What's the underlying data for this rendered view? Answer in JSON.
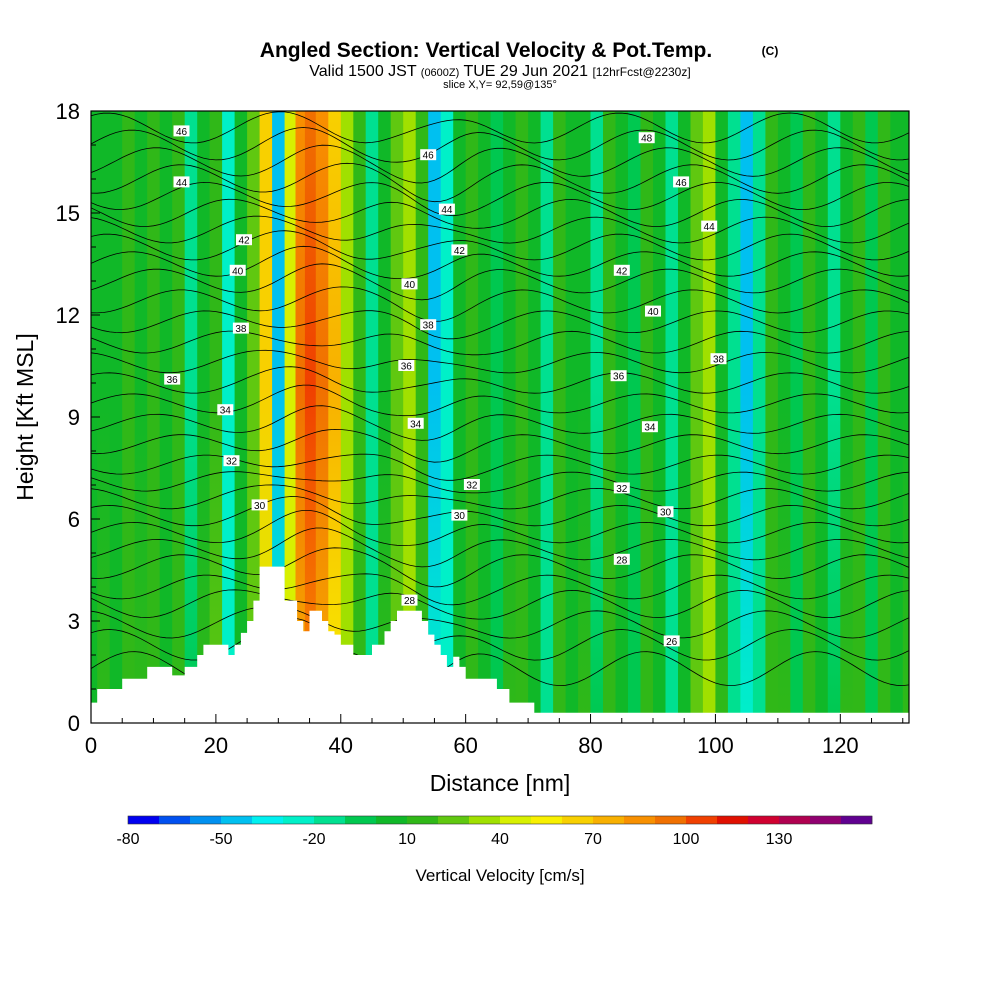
{
  "chart_data": {
    "type": "heatmap",
    "title": "Angled Section: Vertical Velocity & Pot.Temp.",
    "title_units": "(C)",
    "subtitle_parts": [
      "Valid 1500 JST",
      "(0600Z)",
      "TUE 29 Jun 2021",
      "[12hrFcst@2230z]"
    ],
    "slice_label": "slice X,Y= 92,59@135°",
    "xlabel": "Distance [nm]",
    "ylabel": "Height [Kft MSL]",
    "xlim": [
      0,
      131
    ],
    "ylim": [
      0,
      18
    ],
    "x_ticks": [
      0,
      20,
      40,
      60,
      80,
      100,
      120
    ],
    "y_ticks": [
      0,
      3,
      6,
      9,
      12,
      15,
      18
    ],
    "colorbar": {
      "label": "Vertical Velocity [cm/s]",
      "tick_labels": [
        "-80",
        "-50",
        "-20",
        "10",
        "40",
        "70",
        "100",
        "130"
      ],
      "tick_values": [
        -80,
        -50,
        -20,
        10,
        40,
        70,
        100,
        130
      ],
      "min": -80,
      "step": 10,
      "levels": 23,
      "colors": [
        "#0000f0",
        "#0050f0",
        "#0090f0",
        "#00c0f0",
        "#00f0f0",
        "#00f0c8",
        "#00e090",
        "#00c850",
        "#10b828",
        "#30b818",
        "#60c810",
        "#a0e000",
        "#d8f000",
        "#f8f000",
        "#f8d000",
        "#f8b000",
        "#f89000",
        "#f07000",
        "#f04000",
        "#e01000",
        "#d00030",
        "#b00050",
        "#900070",
        "#600090"
      ]
    },
    "velocity_columns": [
      {
        "x": 0,
        "v": 5
      },
      {
        "x": 2,
        "v": 8
      },
      {
        "x": 4,
        "v": 3
      },
      {
        "x": 6,
        "v": 10
      },
      {
        "x": 8,
        "v": 6
      },
      {
        "x": 10,
        "v": 15
      },
      {
        "x": 12,
        "v": 4
      },
      {
        "x": 14,
        "v": 12
      },
      {
        "x": 16,
        "v": -12
      },
      {
        "x": 18,
        "v": 8
      },
      {
        "x": 20,
        "v": 18
      },
      {
        "x": 22,
        "v": -28
      },
      {
        "x": 24,
        "v": 5
      },
      {
        "x": 26,
        "v": 22
      },
      {
        "x": 28,
        "v": 60
      },
      {
        "x": 30,
        "v": -45
      },
      {
        "x": 32,
        "v": 40
      },
      {
        "x": 33.5,
        "v": 95
      },
      {
        "x": 35,
        "v": 100
      },
      {
        "x": 37,
        "v": 90
      },
      {
        "x": 39,
        "v": 70
      },
      {
        "x": 41,
        "v": 30
      },
      {
        "x": 43,
        "v": 10
      },
      {
        "x": 45,
        "v": -15
      },
      {
        "x": 47,
        "v": 8
      },
      {
        "x": 49,
        "v": 20
      },
      {
        "x": 51,
        "v": 35
      },
      {
        "x": 53,
        "v": 12
      },
      {
        "x": 55,
        "v": -45
      },
      {
        "x": 57,
        "v": -25
      },
      {
        "x": 59,
        "v": 5
      },
      {
        "x": 61,
        "v": 12
      },
      {
        "x": 63,
        "v": 3
      },
      {
        "x": 65,
        "v": -10
      },
      {
        "x": 67,
        "v": 8
      },
      {
        "x": 69,
        "v": 15
      },
      {
        "x": 71,
        "v": 2
      },
      {
        "x": 73,
        "v": -15
      },
      {
        "x": 75,
        "v": 10
      },
      {
        "x": 77,
        "v": 3
      },
      {
        "x": 79,
        "v": 6
      },
      {
        "x": 81,
        "v": -12
      },
      {
        "x": 83,
        "v": 14
      },
      {
        "x": 85,
        "v": 4
      },
      {
        "x": 87,
        "v": -8
      },
      {
        "x": 89,
        "v": 10
      },
      {
        "x": 91,
        "v": 2
      },
      {
        "x": 93,
        "v": -15
      },
      {
        "x": 95,
        "v": 5
      },
      {
        "x": 97,
        "v": 20
      },
      {
        "x": 99,
        "v": 35
      },
      {
        "x": 101,
        "v": 8
      },
      {
        "x": 103,
        "v": -20
      },
      {
        "x": 105,
        "v": -45
      },
      {
        "x": 107,
        "v": -15
      },
      {
        "x": 109,
        "v": 10
      },
      {
        "x": 111,
        "v": 6
      },
      {
        "x": 113,
        "v": -8
      },
      {
        "x": 115,
        "v": 14
      },
      {
        "x": 117,
        "v": 3
      },
      {
        "x": 119,
        "v": -12
      },
      {
        "x": 121,
        "v": 8
      },
      {
        "x": 123,
        "v": 12
      },
      {
        "x": 125,
        "v": -5
      },
      {
        "x": 127,
        "v": 10
      },
      {
        "x": 129,
        "v": 4
      },
      {
        "x": 131,
        "v": 6
      }
    ],
    "terrain": [
      {
        "x": 0,
        "h": 0.6
      },
      {
        "x": 1,
        "h": 1.0
      },
      {
        "x": 5,
        "h": 1.3
      },
      {
        "x": 9,
        "h": 1.65
      },
      {
        "x": 12,
        "h": 1.65
      },
      {
        "x": 13,
        "h": 1.4
      },
      {
        "x": 15,
        "h": 1.65
      },
      {
        "x": 17,
        "h": 2.0
      },
      {
        "x": 18,
        "h": 2.3
      },
      {
        "x": 21,
        "h": 2.3
      },
      {
        "x": 22,
        "h": 2.0
      },
      {
        "x": 23,
        "h": 2.3
      },
      {
        "x": 24,
        "h": 2.65
      },
      {
        "x": 25,
        "h": 3.0
      },
      {
        "x": 26,
        "h": 3.6
      },
      {
        "x": 27,
        "h": 4.6
      },
      {
        "x": 30,
        "h": 4.6
      },
      {
        "x": 31,
        "h": 3.6
      },
      {
        "x": 33,
        "h": 3.0
      },
      {
        "x": 34,
        "h": 2.7
      },
      {
        "x": 35,
        "h": 3.3
      },
      {
        "x": 37,
        "h": 3.0
      },
      {
        "x": 38,
        "h": 2.7
      },
      {
        "x": 39,
        "h": 2.6
      },
      {
        "x": 40,
        "h": 2.3
      },
      {
        "x": 42,
        "h": 2.0
      },
      {
        "x": 45,
        "h": 2.3
      },
      {
        "x": 47,
        "h": 2.7
      },
      {
        "x": 48,
        "h": 3.0
      },
      {
        "x": 49,
        "h": 3.3
      },
      {
        "x": 52,
        "h": 3.3
      },
      {
        "x": 53,
        "h": 3.0
      },
      {
        "x": 54,
        "h": 2.6
      },
      {
        "x": 55,
        "h": 2.3
      },
      {
        "x": 56,
        "h": 2.0
      },
      {
        "x": 57,
        "h": 1.65
      },
      {
        "x": 58,
        "h": 1.95
      },
      {
        "x": 59,
        "h": 1.65
      },
      {
        "x": 60,
        "h": 1.3
      },
      {
        "x": 65,
        "h": 1.0
      },
      {
        "x": 67,
        "h": 0.6
      },
      {
        "x": 71,
        "h": 0.3
      },
      {
        "x": 131,
        "h": 0.3
      }
    ],
    "isentropes": [
      {
        "y0": 1.6,
        "amp": 0.5
      },
      {
        "y0": 2.3,
        "amp": 0.45
      },
      {
        "y0": 2.9,
        "amp": 0.4
      },
      {
        "y0": 3.5,
        "amp": 0.4
      },
      {
        "y0": 4.0,
        "amp": 0.35
      },
      {
        "y0": 4.6,
        "amp": 0.35
      },
      {
        "y0": 5.1,
        "amp": 0.3
      },
      {
        "y0": 5.6,
        "amp": 0.3
      },
      {
        "y0": 6.1,
        "amp": 0.3
      },
      {
        "y0": 6.6,
        "amp": 0.3
      },
      {
        "y0": 7.1,
        "amp": 0.28
      },
      {
        "y0": 7.6,
        "amp": 0.28
      },
      {
        "y0": 8.2,
        "amp": 0.28
      },
      {
        "y0": 8.8,
        "amp": 0.28
      },
      {
        "y0": 9.4,
        "amp": 0.28
      },
      {
        "y0": 10.0,
        "amp": 0.3
      },
      {
        "y0": 10.6,
        "amp": 0.3
      },
      {
        "y0": 11.2,
        "amp": 0.32
      },
      {
        "y0": 11.8,
        "amp": 0.32
      },
      {
        "y0": 12.4,
        "amp": 0.34
      },
      {
        "y0": 13.0,
        "amp": 0.35
      },
      {
        "y0": 13.5,
        "amp": 0.36
      },
      {
        "y0": 14.0,
        "amp": 0.38
      },
      {
        "y0": 14.5,
        "amp": 0.38
      },
      {
        "y0": 15.0,
        "amp": 0.4
      },
      {
        "y0": 15.5,
        "amp": 0.4
      },
      {
        "y0": 16.0,
        "amp": 0.42
      },
      {
        "y0": 16.5,
        "amp": 0.42
      },
      {
        "y0": 17.0,
        "amp": 0.44
      },
      {
        "y0": 17.5,
        "amp": 0.44
      }
    ],
    "contour_labels": [
      {
        "text": "46",
        "x": 14.5,
        "y": 17.4
      },
      {
        "text": "44",
        "x": 14.5,
        "y": 15.9
      },
      {
        "text": "42",
        "x": 24.5,
        "y": 14.2
      },
      {
        "text": "40",
        "x": 23.5,
        "y": 13.3
      },
      {
        "text": "38",
        "x": 24,
        "y": 11.6
      },
      {
        "text": "36",
        "x": 13,
        "y": 10.1
      },
      {
        "text": "34",
        "x": 21.5,
        "y": 9.2
      },
      {
        "text": "32",
        "x": 22.5,
        "y": 7.7
      },
      {
        "text": "30",
        "x": 27,
        "y": 6.4
      },
      {
        "text": "46",
        "x": 54,
        "y": 16.7
      },
      {
        "text": "44",
        "x": 57,
        "y": 15.1
      },
      {
        "text": "42",
        "x": 59,
        "y": 13.9
      },
      {
        "text": "40",
        "x": 51,
        "y": 12.9
      },
      {
        "text": "38",
        "x": 54,
        "y": 11.7
      },
      {
        "text": "36",
        "x": 50.5,
        "y": 10.5
      },
      {
        "text": "34",
        "x": 52,
        "y": 8.8
      },
      {
        "text": "32",
        "x": 61,
        "y": 7.0
      },
      {
        "text": "30",
        "x": 59,
        "y": 6.1
      },
      {
        "text": "28",
        "x": 51,
        "y": 3.6
      },
      {
        "text": "48",
        "x": 89,
        "y": 17.2
      },
      {
        "text": "46",
        "x": 94.5,
        "y": 15.9
      },
      {
        "text": "44",
        "x": 99,
        "y": 14.6
      },
      {
        "text": "42",
        "x": 85,
        "y": 13.3
      },
      {
        "text": "40",
        "x": 90,
        "y": 12.1
      },
      {
        "text": "38",
        "x": 100.5,
        "y": 10.7
      },
      {
        "text": "36",
        "x": 84.5,
        "y": 10.2
      },
      {
        "text": "34",
        "x": 89.5,
        "y": 8.7
      },
      {
        "text": "32",
        "x": 85,
        "y": 6.9
      },
      {
        "text": "30",
        "x": 92,
        "y": 6.2
      },
      {
        "text": "28",
        "x": 85,
        "y": 4.8
      },
      {
        "text": "26",
        "x": 93,
        "y": 2.4
      }
    ]
  }
}
